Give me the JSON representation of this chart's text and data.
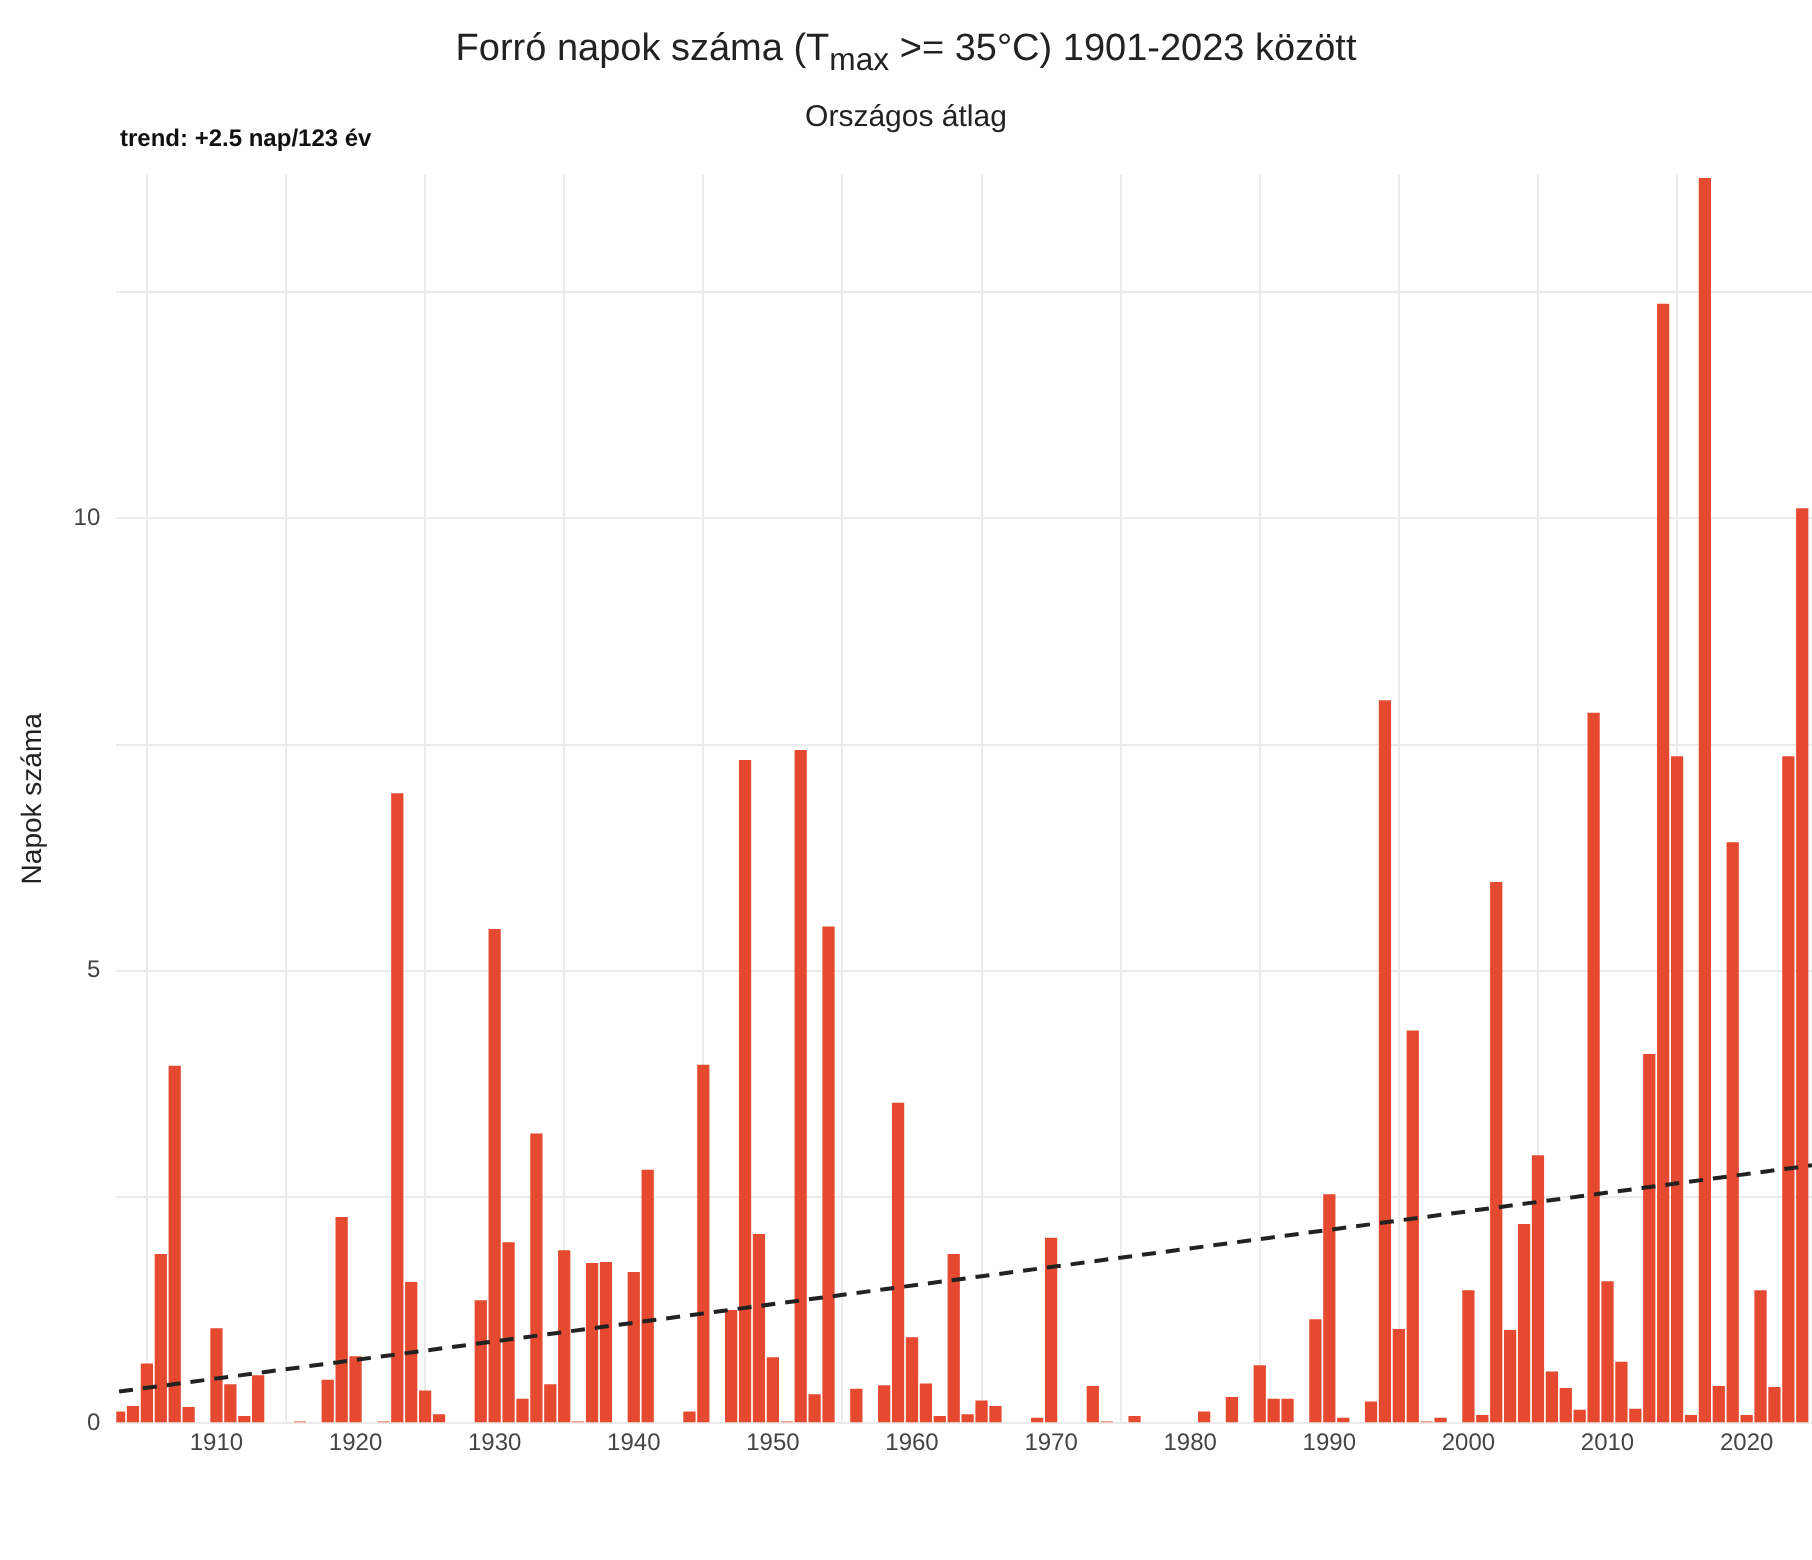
{
  "chart_data": {
    "type": "bar",
    "title": "Forró napok száma (T$_{max}$ >= 35°C) 1901-2023 között",
    "subtitle": "Országos átlag",
    "ylabel": "Napok száma",
    "annotations": [
      "trend: +2.5 nap/123 év"
    ],
    "x": [
      1903,
      1904,
      1905,
      1906,
      1907,
      1908,
      1909,
      1910,
      1911,
      1912,
      1913,
      1914,
      1915,
      1916,
      1917,
      1918,
      1919,
      1920,
      1921,
      1922,
      1923,
      1924,
      1925,
      1926,
      1927,
      1928,
      1929,
      1930,
      1931,
      1932,
      1933,
      1934,
      1935,
      1936,
      1937,
      1938,
      1939,
      1940,
      1941,
      1942,
      1943,
      1944,
      1945,
      1946,
      1947,
      1948,
      1949,
      1950,
      1951,
      1952,
      1953,
      1954,
      1955,
      1956,
      1957,
      1958,
      1959,
      1960,
      1961,
      1962,
      1963,
      1964,
      1965,
      1966,
      1967,
      1968,
      1969,
      1970,
      1971,
      1972,
      1973,
      1974,
      1975,
      1976,
      1977,
      1978,
      1979,
      1980,
      1981,
      1982,
      1983,
      1984,
      1985,
      1986,
      1987,
      1988,
      1989,
      1990,
      1991,
      1992,
      1993,
      1994,
      1995,
      1996,
      1997,
      1998,
      1999,
      2000,
      2001,
      2002,
      2003,
      2004,
      2005,
      2006,
      2007,
      2008,
      2009,
      2010,
      2011,
      2012,
      2013,
      2014,
      2015,
      2016,
      2017,
      2018,
      2019,
      2020,
      2021,
      2022,
      2023,
      2024
    ],
    "series": [
      {
        "color": "#e5492f",
        "values": [
          0.13,
          0.19,
          0.66,
          1.87,
          3.95,
          0.18,
          0,
          1.05,
          0.43,
          0.08,
          0.53,
          0,
          0,
          0.02,
          0,
          0.48,
          2.28,
          0.74,
          0,
          0.02,
          6.96,
          1.56,
          0.36,
          0.1,
          0,
          0,
          1.36,
          5.46,
          2.0,
          0.27,
          3.2,
          0.43,
          1.91,
          0.02,
          1.77,
          1.78,
          0,
          1.67,
          2.8,
          0,
          0,
          0.13,
          3.96,
          0,
          1.25,
          7.33,
          2.09,
          0.73,
          0.02,
          7.44,
          0.32,
          5.49,
          0,
          0.38,
          0,
          0.42,
          3.54,
          0.95,
          0.44,
          0.08,
          1.87,
          0.1,
          0.25,
          0.19,
          0,
          0,
          0.06,
          2.05,
          0,
          0,
          0.41,
          0.02,
          0,
          0.08,
          0,
          0,
          0,
          0,
          0.13,
          0,
          0.29,
          0,
          0.64,
          0.27,
          0.27,
          0,
          1.15,
          2.53,
          0.06,
          0,
          0.24,
          7.99,
          1.04,
          4.34,
          0.02,
          0.06,
          0,
          1.47,
          0.09,
          5.98,
          1.03,
          2.2,
          2.96,
          0.57,
          0.39,
          0.15,
          7.85,
          1.57,
          0.68,
          0.16,
          4.08,
          12.37,
          7.37,
          0.09,
          13.76,
          0.41,
          6.42,
          0.09,
          1.47,
          0.4,
          7.37,
          10.11
        ]
      },
      {
        "type": "line",
        "color": "#222222",
        "line_style": "dashed",
        "x": [
          1903,
          2024.7
        ],
        "values": [
          0.35,
          2.85
        ]
      }
    ],
    "xlim": [
      1902.8,
      2024.7
    ],
    "xticks": [
      1910,
      1920,
      1930,
      1940,
      1950,
      1960,
      1970,
      1980,
      1990,
      2000,
      2010,
      2020
    ],
    "ylim": [
      0,
      13.8
    ],
    "yticks": [
      0,
      {
        "value": 2.5,
        "label": null
      },
      5,
      {
        "value": 7.5,
        "label": null
      },
      10,
      {
        "value": 12.5,
        "label": null
      }
    ],
    "grid": true,
    "legend": false,
    "marker": "none"
  }
}
